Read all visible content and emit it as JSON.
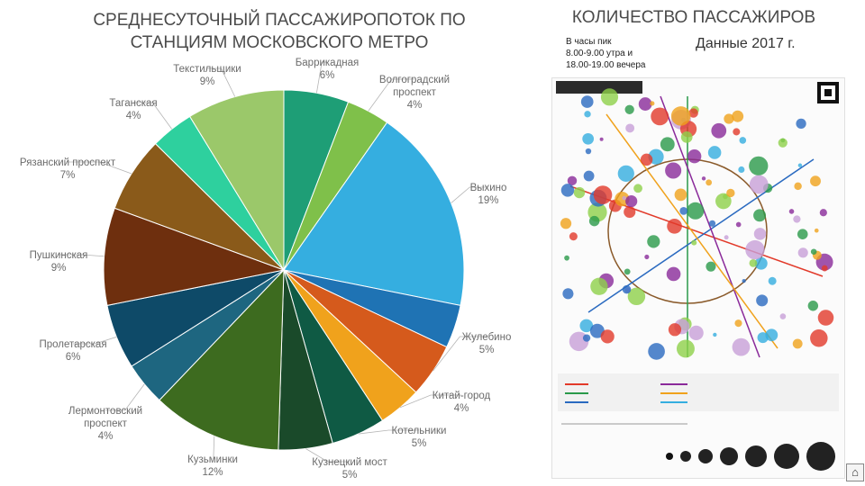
{
  "left_title": "СРЕДНЕСУТОЧНЫЙ ПАССАЖИРОПОТОК ПО\nСТАНЦИЯМ МОСКОВСКОГО МЕТРО",
  "right_title": "КОЛИЧЕСТВО ПАССАЖИРОВ",
  "peak_note": "В часы пик\n8.00-9.00 утра и\n18.00-19.00 вечера",
  "data_year": "Данные 2017 г.",
  "chart_data": {
    "type": "pie",
    "title": "СРЕДНЕСУТОЧНЫЙ ПАССАЖИРОПОТОК ПО СТАНЦИЯМ МОСКОВСКОГО МЕТРО",
    "slices": [
      {
        "label": "Баррикадная",
        "value": 6,
        "text": "6%",
        "color": "#1e9e76"
      },
      {
        "label": "Волгоградский проспект",
        "value": 4,
        "text": "4%",
        "color": "#7fc04a"
      },
      {
        "label": "Выхино",
        "value": 19,
        "text": "19%",
        "color": "#35aee0"
      },
      {
        "label": "",
        "value": 4,
        "text": "",
        "color": "#1f73b4"
      },
      {
        "label": "Жулебино",
        "value": 5,
        "text": "5%",
        "color": "#d55a1c"
      },
      {
        "label": "Китай-город",
        "value": 4,
        "text": "4%",
        "color": "#f0a21c"
      },
      {
        "label": "Котельники",
        "value": 5,
        "text": "5%",
        "color": "#0f5a44"
      },
      {
        "label": "Кузнецкий мост",
        "value": 5,
        "text": "5%",
        "color": "#1a4a2a"
      },
      {
        "label": "Кузьминки",
        "value": 12,
        "text": "12%",
        "color": "#3d6b1f"
      },
      {
        "label": "Лермонтовский проспект",
        "value": 4,
        "text": "4%",
        "color": "#1e6680"
      },
      {
        "label": "Пролетарская",
        "value": 6,
        "text": "6%",
        "color": "#0e4a68"
      },
      {
        "label": "Пушкинская",
        "value": 9,
        "text": "9%",
        "color": "#6e2f0e"
      },
      {
        "label": "Рязанский проспект",
        "value": 7,
        "text": "7%",
        "color": "#8a5a1a"
      },
      {
        "label": "Таганская",
        "value": 4,
        "text": "4%",
        "color": "#2ed09e"
      },
      {
        "label": "Текстильщики",
        "value": 9,
        "text": "9%",
        "color": "#9bc86a"
      }
    ]
  }
}
